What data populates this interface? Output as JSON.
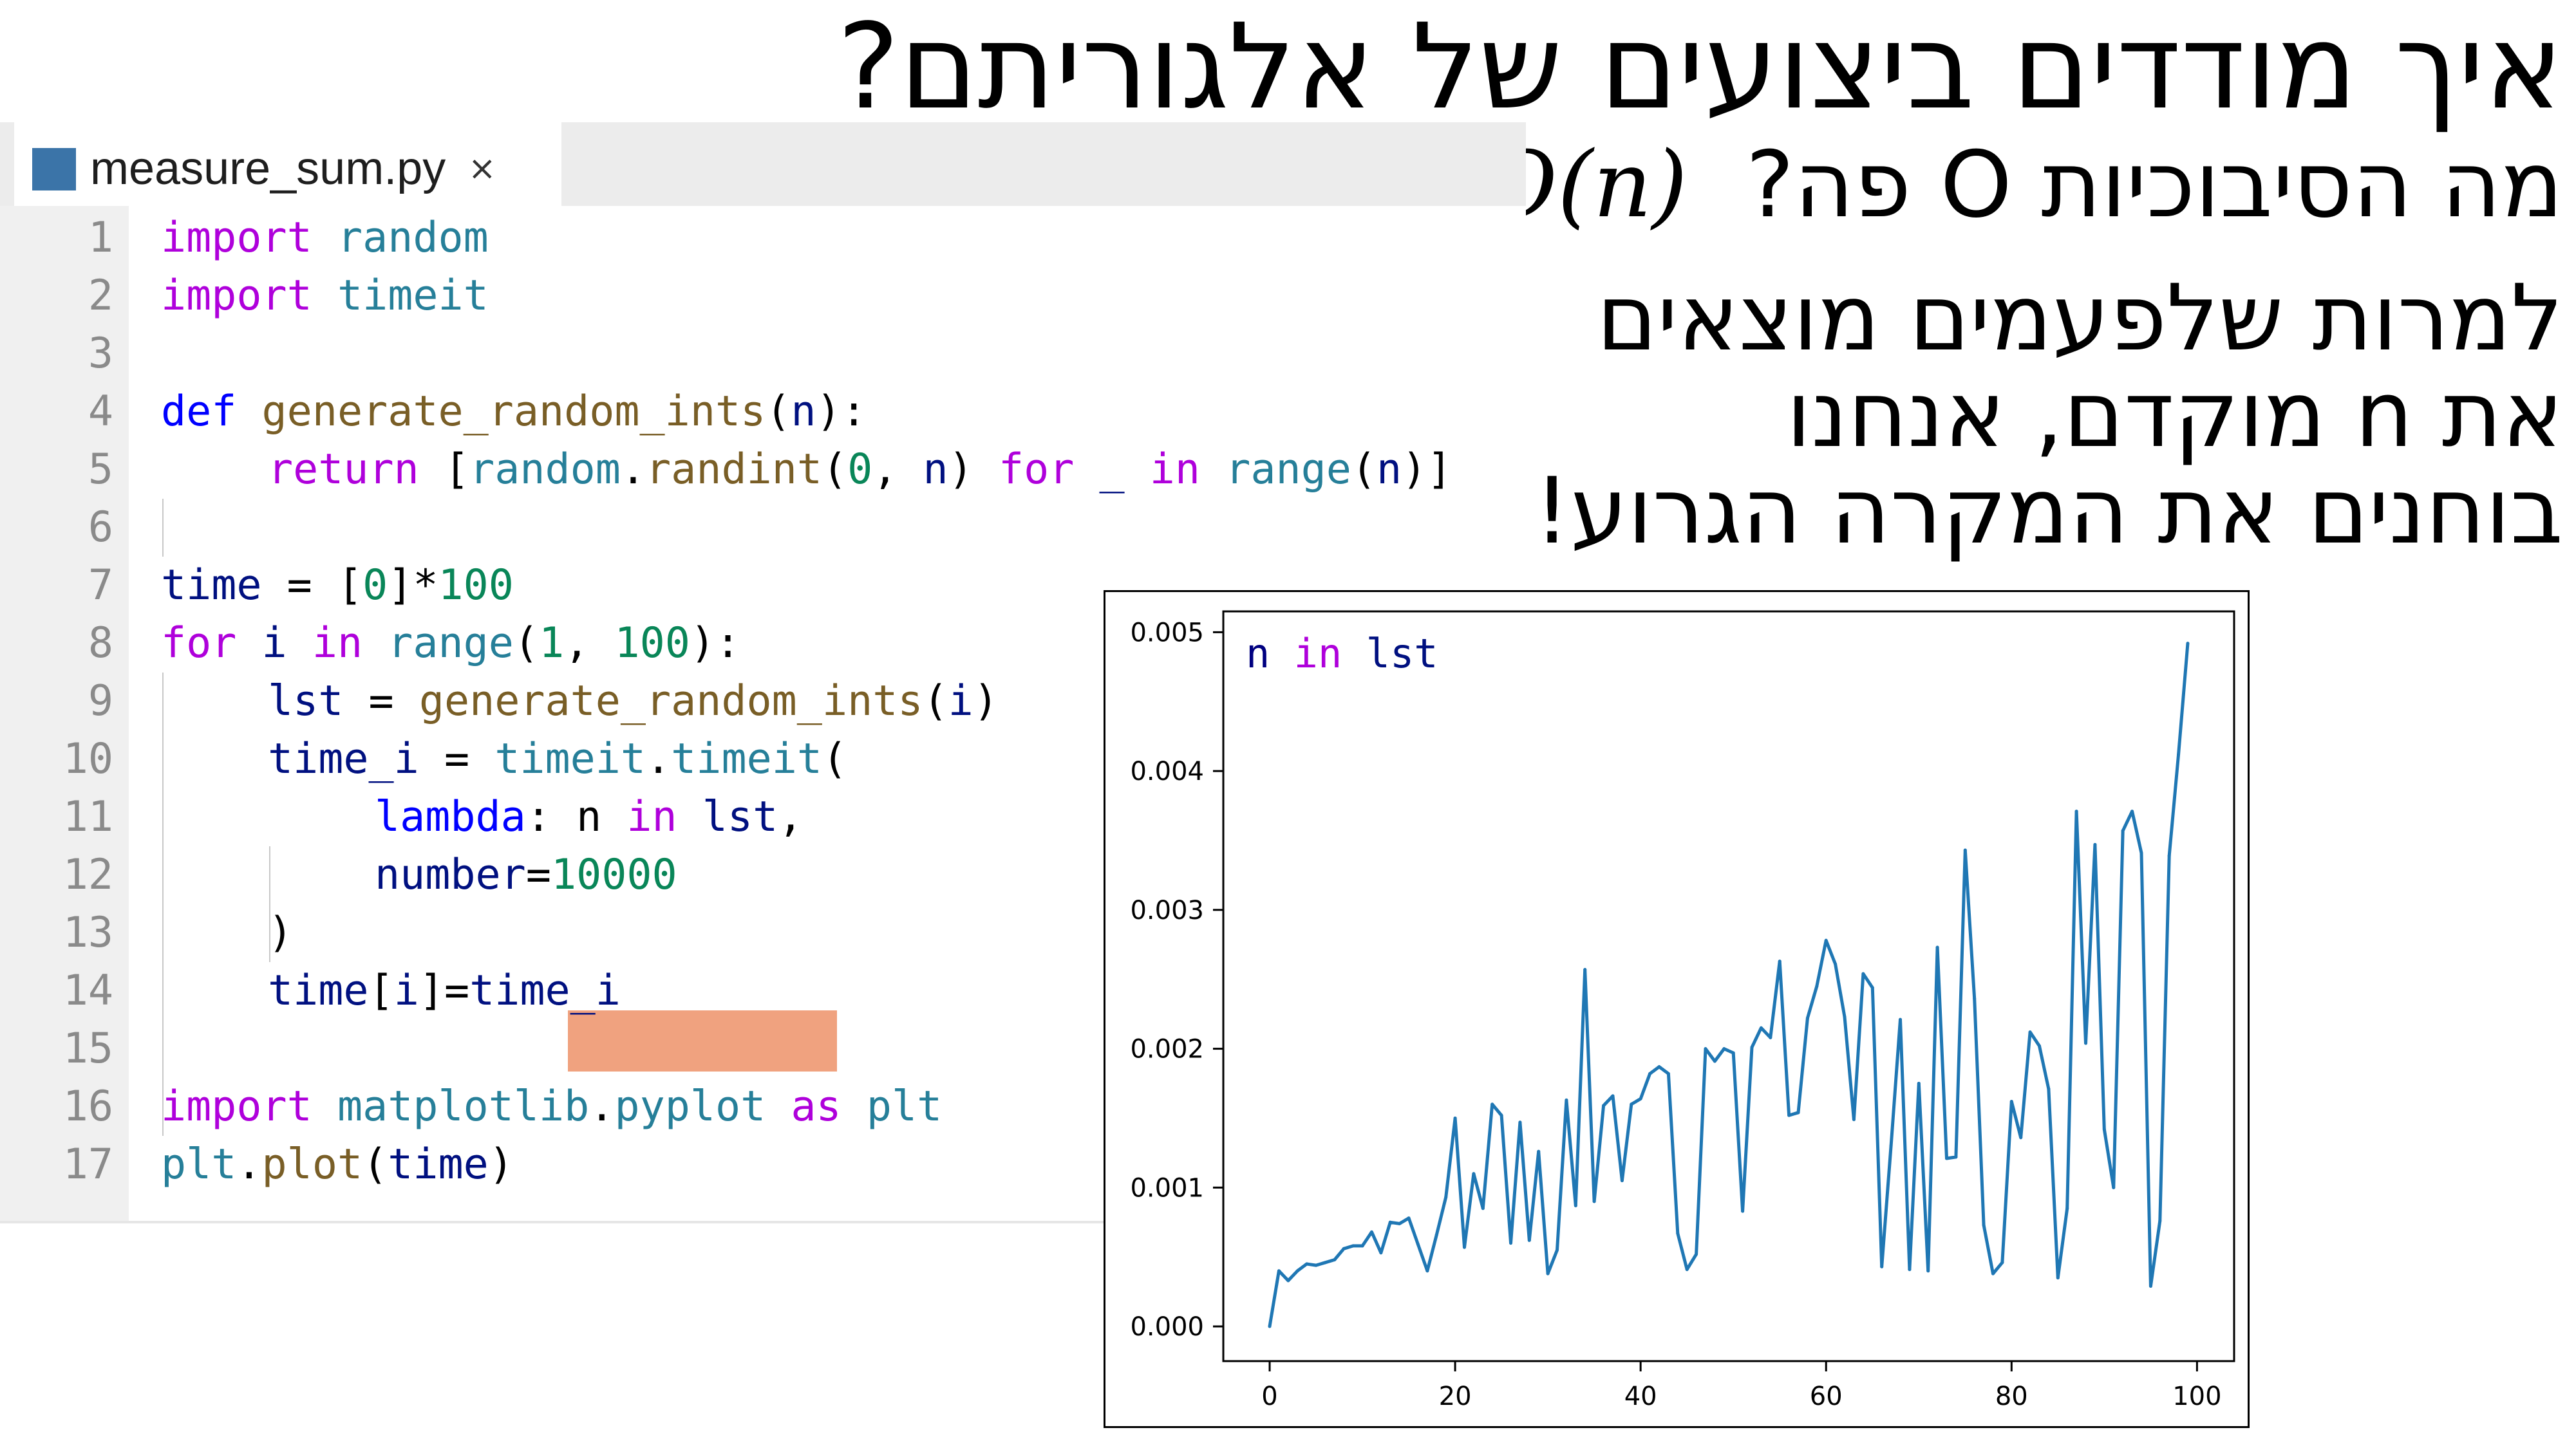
{
  "slide": {
    "title": "איך מודדים ביצועים של אלגוריתם?",
    "subtitle_text": "מה הסיבוכיות O פה?",
    "subtitle_math": "O(n)",
    "note_lines": [
      "למרות שלפעמים מוצאים",
      "את n מוקדם, אנחנו",
      "בוחנים את המקרה הגרוע!"
    ]
  },
  "editor": {
    "tab": {
      "label": "measure_sum.py",
      "close": "×",
      "icon": "python-file-icon"
    },
    "line_numbers": [
      "1",
      "2",
      "3",
      "4",
      "5",
      "6",
      "7",
      "8",
      "9",
      "10",
      "11",
      "12",
      "13",
      "14",
      "15",
      "16",
      "17"
    ],
    "code": {
      "l1": {
        "import": "import",
        "mod": "random"
      },
      "l2": {
        "import": "import",
        "mod": "timeit"
      },
      "l4": {
        "def": "def",
        "name": "generate_random_ints",
        "open": "(",
        "arg": "n",
        "close": "):"
      },
      "l5": {
        "ret": "return",
        "b1": "[",
        "mod": "random",
        "dot": ".",
        "fn": "randint",
        "p1": "(",
        "n0": "0",
        "c": ", ",
        "n": "n",
        "p2": ")",
        "sp": " ",
        "for": "for",
        "us": "_",
        "in": "in",
        "range": "range",
        "p3": "(",
        "n2": "n",
        "end": ")]"
      },
      "l7": {
        "var": "time",
        "eq": " = [",
        "zero": "0",
        "mul": "]*",
        "hundred": "100"
      },
      "l8": {
        "for": "for",
        "i": "i",
        "in": "in",
        "range": "range",
        "open": "(",
        "one": "1",
        "comma": ", ",
        "hundred": "100",
        "close": "):"
      },
      "l9": {
        "var": "lst",
        "eq": " = ",
        "fn": "generate_random_ints",
        "open": "(",
        "i": "i",
        "close": ")"
      },
      "l10": {
        "var": "time_i",
        "eq": " = ",
        "mod": "timeit",
        "dot": ".",
        "fn": "timeit",
        "open": "("
      },
      "l11": {
        "lambda": "lambda",
        "colon": ": ",
        "n": "n",
        "in": "in",
        "lst": "lst",
        "comma": ","
      },
      "l12": {
        "param": "number",
        "eq": "=",
        "val": "10000"
      },
      "l13": {
        "close": ")"
      },
      "l14": {
        "var": "time",
        "b1": "[",
        "i": "i",
        "b2": "]=",
        "rhs": "time_i"
      },
      "l16": {
        "import": "import",
        "mod": "matplotlib",
        "dot": ".",
        "sub": "pyplot",
        "as": "as",
        "alias": "plt"
      },
      "l17": {
        "plt": "plt",
        "dot": ".",
        "fn": "plot",
        "open": "(",
        "arg": "time",
        "close": ")"
      }
    }
  },
  "chart_data": {
    "type": "line",
    "annotation": {
      "n": "n",
      "in": "in",
      "lst": "lst"
    },
    "xlim": [
      -5,
      104
    ],
    "ylim": [
      -0.00025,
      0.00515
    ],
    "x_ticks": [
      0,
      20,
      40,
      60,
      80,
      100
    ],
    "y_ticks": [
      0.0,
      0.001,
      0.002,
      0.003,
      0.004,
      0.005
    ],
    "y_tick_labels": [
      "0.000",
      "0.001",
      "0.002",
      "0.003",
      "0.004",
      "0.005"
    ],
    "grid": false,
    "line_color": "#1f77b4",
    "x": [
      0,
      1,
      2,
      3,
      4,
      5,
      6,
      7,
      8,
      9,
      10,
      11,
      12,
      13,
      14,
      15,
      16,
      17,
      18,
      19,
      20,
      21,
      22,
      23,
      24,
      25,
      26,
      27,
      28,
      29,
      30,
      31,
      32,
      33,
      34,
      35,
      36,
      37,
      38,
      39,
      40,
      41,
      42,
      43,
      44,
      45,
      46,
      47,
      48,
      49,
      50,
      51,
      52,
      53,
      54,
      55,
      56,
      57,
      58,
      59,
      60,
      61,
      62,
      63,
      64,
      65,
      66,
      67,
      68,
      69,
      70,
      71,
      72,
      73,
      74,
      75,
      76,
      77,
      78,
      79,
      80,
      81,
      82,
      83,
      84,
      85,
      86,
      87,
      88,
      89,
      90,
      91,
      92,
      93,
      94,
      95,
      96,
      97,
      98,
      99
    ],
    "values": [
      0.0,
      0.0004,
      0.00033,
      0.0004,
      0.00045,
      0.00044,
      0.00046,
      0.00048,
      0.00056,
      0.00058,
      0.00058,
      0.00068,
      0.00053,
      0.00075,
      0.00074,
      0.00078,
      0.00059,
      0.0004,
      0.00066,
      0.00093,
      0.0015,
      0.00057,
      0.0011,
      0.00085,
      0.0016,
      0.00152,
      0.0006,
      0.00147,
      0.00062,
      0.00126,
      0.00038,
      0.00055,
      0.00163,
      0.00087,
      0.00257,
      0.0009,
      0.00159,
      0.00166,
      0.00105,
      0.0016,
      0.00164,
      0.00182,
      0.00187,
      0.00182,
      0.00067,
      0.00041,
      0.00052,
      0.002,
      0.00191,
      0.002,
      0.00197,
      0.00083,
      0.00201,
      0.00215,
      0.00208,
      0.00263,
      0.00152,
      0.00154,
      0.00222,
      0.00245,
      0.00278,
      0.00261,
      0.00223,
      0.00149,
      0.00254,
      0.00244,
      0.00043,
      0.0013,
      0.00221,
      0.00041,
      0.00175,
      0.0004,
      0.00273,
      0.00121,
      0.00122,
      0.00343,
      0.00236,
      0.00073,
      0.00038,
      0.00046,
      0.00162,
      0.00136,
      0.00212,
      0.00202,
      0.00171,
      0.00035,
      0.00085,
      0.00371,
      0.00204,
      0.00347,
      0.00142,
      0.001,
      0.00357,
      0.00371,
      0.00341,
      0.00029,
      0.00076,
      0.00339,
      0.00412,
      0.00492
    ]
  }
}
